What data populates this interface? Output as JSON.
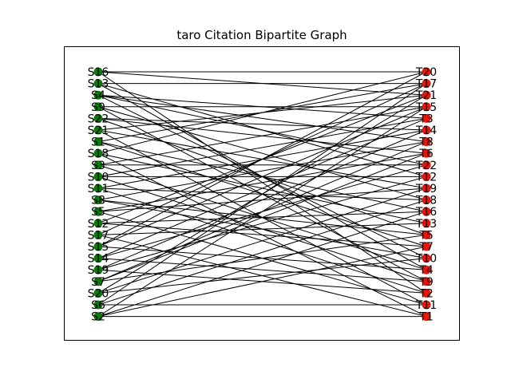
{
  "title": "taro Citation Bipartite Graph",
  "colors": {
    "source": "#0b7a0b",
    "target": "#e8140c",
    "edge": "#000000",
    "frame": "#000000",
    "background": "#ffffff"
  },
  "source_nodes": [
    "S16",
    "S13",
    "S4",
    "S9",
    "S22",
    "S21",
    "S1",
    "S18",
    "S3",
    "S10",
    "S11",
    "S8",
    "S5",
    "S12",
    "S17",
    "S15",
    "S14",
    "S19",
    "S7",
    "S20",
    "S6",
    "S2"
  ],
  "target_nodes": [
    "T20",
    "T17",
    "T21",
    "T15",
    "T3",
    "T14",
    "T8",
    "T6",
    "T22",
    "T12",
    "T19",
    "T18",
    "T16",
    "T13",
    "T5",
    "T7",
    "T10",
    "T4",
    "T9",
    "T2",
    "T11",
    "T1"
  ],
  "edges": [
    [
      "S16",
      "T20"
    ],
    [
      "S16",
      "T21"
    ],
    [
      "S16",
      "T2"
    ],
    [
      "S13",
      "T17"
    ],
    [
      "S13",
      "T12"
    ],
    [
      "S13",
      "T4"
    ],
    [
      "S4",
      "T3"
    ],
    [
      "S4",
      "T8"
    ],
    [
      "S4",
      "T22"
    ],
    [
      "S4",
      "T10"
    ],
    [
      "S9",
      "T15"
    ],
    [
      "S9",
      "T18"
    ],
    [
      "S9",
      "T9"
    ],
    [
      "S22",
      "T14"
    ],
    [
      "S22",
      "T6"
    ],
    [
      "S22",
      "T5"
    ],
    [
      "S21",
      "T21"
    ],
    [
      "S21",
      "T19"
    ],
    [
      "S21",
      "T11"
    ],
    [
      "S1",
      "T17"
    ],
    [
      "S1",
      "T16"
    ],
    [
      "S1",
      "T7"
    ],
    [
      "S18",
      "T20"
    ],
    [
      "S18",
      "T13"
    ],
    [
      "S18",
      "T1"
    ],
    [
      "S3",
      "T15"
    ],
    [
      "S3",
      "T22"
    ],
    [
      "S3",
      "T4"
    ],
    [
      "S10",
      "T3"
    ],
    [
      "S10",
      "T12"
    ],
    [
      "S10",
      "T9"
    ],
    [
      "S11",
      "T14"
    ],
    [
      "S11",
      "T18"
    ],
    [
      "S11",
      "T2"
    ],
    [
      "S8",
      "T8"
    ],
    [
      "S8",
      "T5"
    ],
    [
      "S8",
      "T10"
    ],
    [
      "S5",
      "T6"
    ],
    [
      "S5",
      "T19"
    ],
    [
      "S5",
      "T11"
    ],
    [
      "S12",
      "T21"
    ],
    [
      "S12",
      "T16"
    ],
    [
      "S12",
      "T7"
    ],
    [
      "S17",
      "T17"
    ],
    [
      "S17",
      "T13"
    ],
    [
      "S17",
      "T1"
    ],
    [
      "S15",
      "T20"
    ],
    [
      "S15",
      "T15"
    ],
    [
      "S15",
      "T4"
    ],
    [
      "S14",
      "T3"
    ],
    [
      "S14",
      "T22"
    ],
    [
      "S14",
      "T9"
    ],
    [
      "S19",
      "T14"
    ],
    [
      "S19",
      "T12"
    ],
    [
      "S19",
      "T2"
    ],
    [
      "S7",
      "T8"
    ],
    [
      "S7",
      "T6"
    ],
    [
      "S7",
      "T5"
    ],
    [
      "S20",
      "T21"
    ],
    [
      "S20",
      "T19"
    ],
    [
      "S20",
      "T10"
    ],
    [
      "S6",
      "T17"
    ],
    [
      "S6",
      "T18"
    ],
    [
      "S6",
      "T11"
    ],
    [
      "S2",
      "T1"
    ],
    [
      "S2",
      "T15"
    ],
    [
      "S2",
      "T16"
    ],
    [
      "S2",
      "T7"
    ]
  ]
}
